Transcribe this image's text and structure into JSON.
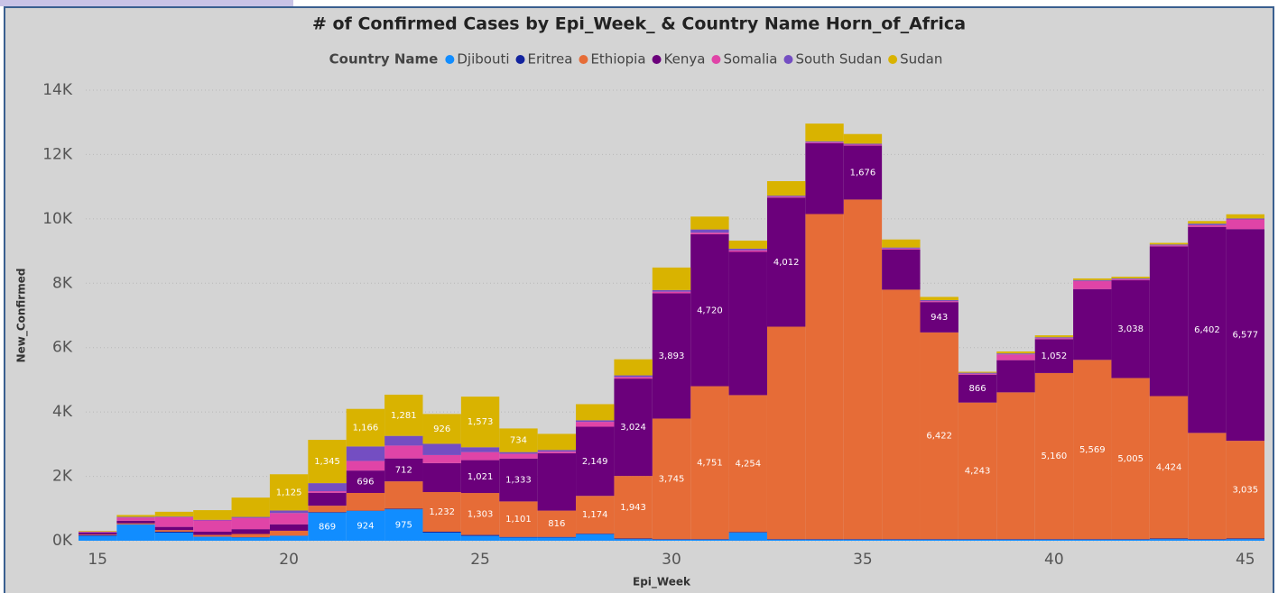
{
  "chart_data": {
    "type": "stacked_bar",
    "title": "# of Confirmed Cases by Epi_Week_ & Country Name Horn_of_Africa",
    "legend_title": "Country Name",
    "x_label": "Epi_Week",
    "y_label": "New_Confirmed",
    "x": [
      15,
      16,
      17,
      18,
      19,
      20,
      21,
      22,
      23,
      24,
      25,
      26,
      27,
      28,
      29,
      30,
      31,
      32,
      33,
      34,
      35,
      36,
      37,
      38,
      39,
      40,
      41,
      42,
      43,
      44,
      45
    ],
    "xlim": [
      14.5,
      45.5
    ],
    "xticks": [
      15,
      20,
      25,
      30,
      35,
      40,
      45
    ],
    "ylim": [
      0,
      14000
    ],
    "yticks": [
      {
        "value": 0,
        "label": "0K"
      },
      {
        "value": 2000,
        "label": "2K"
      },
      {
        "value": 4000,
        "label": "4K"
      },
      {
        "value": 6000,
        "label": "6K"
      },
      {
        "value": 8000,
        "label": "8K"
      },
      {
        "value": 10000,
        "label": "10K"
      },
      {
        "value": 12000,
        "label": "12K"
      },
      {
        "value": 14000,
        "label": "14K"
      }
    ],
    "grid": true,
    "series": [
      {
        "name": "Djibouti",
        "color": "#118DFF",
        "values": [
          150,
          500,
          250,
          120,
          100,
          150,
          869,
          924,
          975,
          250,
          150,
          100,
          100,
          200,
          50,
          30,
          30,
          250,
          30,
          30,
          30,
          30,
          30,
          30,
          30,
          30,
          30,
          30,
          50,
          30,
          50
        ],
        "value_labels": [
          null,
          null,
          null,
          null,
          null,
          null,
          "869",
          "924",
          "975",
          null,
          null,
          null,
          null,
          null,
          null,
          null,
          null,
          null,
          null,
          null,
          null,
          null,
          null,
          null,
          null,
          null,
          null,
          null,
          null,
          null,
          null
        ]
      },
      {
        "name": "Eritrea",
        "color": "#12239E",
        "values": [
          20,
          10,
          30,
          10,
          10,
          10,
          20,
          10,
          20,
          30,
          30,
          20,
          20,
          20,
          20,
          20,
          20,
          20,
          20,
          20,
          20,
          20,
          20,
          20,
          20,
          20,
          20,
          20,
          20,
          20,
          20
        ]
      },
      {
        "name": "Ethiopia",
        "color": "#E66C37",
        "values": [
          20,
          30,
          50,
          50,
          100,
          150,
          200,
          550,
          850,
          1232,
          1303,
          1101,
          816,
          1174,
          1943,
          3745,
          4751,
          4254,
          6600,
          10100,
          10550,
          7750,
          6422,
          4243,
          4560,
          5160,
          5569,
          5005,
          4424,
          3300,
          3035
        ],
        "value_labels": [
          null,
          null,
          null,
          null,
          null,
          null,
          null,
          null,
          null,
          "1,232",
          "1,303",
          "1,101",
          "816",
          "1,174",
          "1,943",
          "3,745",
          "4,751",
          "4,254",
          null,
          null,
          null,
          null,
          "6,422",
          "4,243",
          null,
          "5,160",
          "5,569",
          "5,005",
          "4,424",
          null,
          "3,035"
        ]
      },
      {
        "name": "Kenya",
        "color": "#6B007B",
        "values": [
          60,
          80,
          100,
          100,
          150,
          200,
          400,
          696,
          712,
          900,
          1021,
          1333,
          1784,
          2149,
          3024,
          3893,
          4720,
          4450,
          4012,
          2200,
          1676,
          1250,
          943,
          866,
          1000,
          1052,
          2200,
          3038,
          4650,
          6402,
          6577
        ],
        "value_labels": [
          null,
          null,
          null,
          null,
          null,
          null,
          null,
          "696",
          "712",
          null,
          "1,021",
          "1,333",
          null,
          "2,149",
          "3,024",
          "3,893",
          "4,720",
          null,
          "4,012",
          null,
          "1,676",
          null,
          "943",
          "866",
          null,
          "1,052",
          null,
          "3,038",
          null,
          "6,402",
          "6,577"
        ]
      },
      {
        "name": "Somalia",
        "color": "#E044A7",
        "values": [
          20,
          100,
          300,
          350,
          350,
          350,
          50,
          300,
          400,
          250,
          250,
          150,
          50,
          150,
          50,
          50,
          50,
          50,
          30,
          30,
          30,
          30,
          30,
          30,
          180,
          30,
          250,
          30,
          30,
          50,
          300
        ]
      },
      {
        "name": "South Sudan",
        "color": "#744EC2",
        "values": [
          10,
          20,
          20,
          20,
          30,
          80,
          250,
          450,
          300,
          350,
          150,
          50,
          50,
          50,
          50,
          50,
          100,
          50,
          30,
          30,
          30,
          30,
          30,
          30,
          30,
          30,
          30,
          30,
          30,
          50,
          30
        ]
      },
      {
        "name": "Sudan",
        "color": "#D9B300",
        "values": [
          20,
          60,
          150,
          300,
          600,
          1125,
          1345,
          1166,
          1281,
          926,
          1573,
          734,
          500,
          500,
          500,
          700,
          400,
          250,
          450,
          550,
          300,
          250,
          100,
          30,
          60,
          60,
          50,
          50,
          50,
          80,
          130
        ],
        "value_labels": [
          null,
          null,
          null,
          null,
          null,
          "1,125",
          "1,345",
          "1,166",
          "1,281",
          "926",
          "1,573",
          "734",
          null,
          null,
          null,
          null,
          null,
          null,
          null,
          null,
          null,
          null,
          null,
          null,
          null,
          null,
          null,
          null,
          null,
          null,
          null
        ]
      }
    ]
  }
}
